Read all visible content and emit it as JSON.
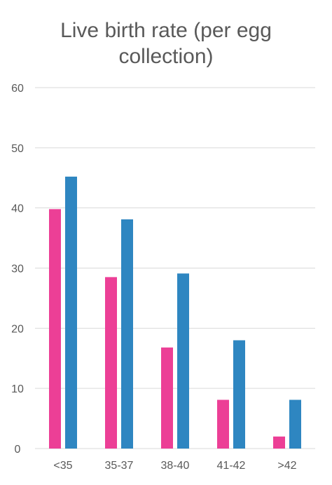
{
  "chart_data": {
    "type": "bar",
    "title_lines": [
      "Live birth rate (per egg",
      "collection)"
    ],
    "categories": [
      "<35",
      "35-37",
      "38-40",
      "41-42",
      ">42"
    ],
    "series": [
      {
        "values": [
          39.8,
          28.5,
          16.8,
          8.1,
          2.0
        ],
        "color": "#ec3f96"
      },
      {
        "values": [
          45.2,
          38.1,
          29.1,
          18.0,
          8.1
        ],
        "color": "#2e86c1"
      }
    ],
    "ylim": [
      0,
      60
    ],
    "yticks": [
      0,
      10,
      20,
      30,
      40,
      50,
      60
    ],
    "grid": true,
    "legend": "none"
  }
}
